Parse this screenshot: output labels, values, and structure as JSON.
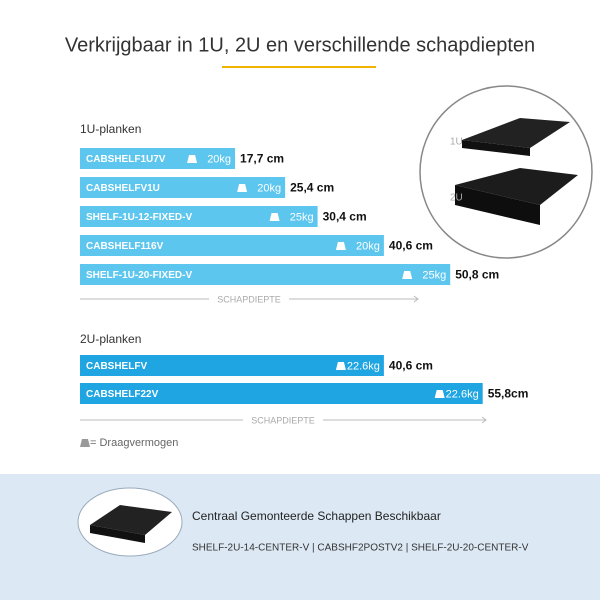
{
  "header": {
    "title": "Verkrijgbaar in 1U, 2U en verschillende schapdiepten"
  },
  "chart_data": [
    {
      "type": "bar",
      "title": "1U-planken",
      "x_label": "SCHAPDIEPTE",
      "color": "#5cc6ef",
      "categories": [
        "CABSHELF1U7V",
        "CABSHELFV1U",
        "SHELF-1U-12-FIXED-V",
        "CABSHELF116V",
        "SHELF-1U-20-FIXED-V"
      ],
      "values": [
        17.7,
        25.4,
        30.4,
        40.6,
        50.8
      ],
      "value_labels": [
        "17,7 cm",
        "25,4 cm",
        "30,4 cm",
        "40,6 cm",
        "50,8 cm"
      ],
      "weights": [
        20,
        20,
        25,
        20,
        25
      ],
      "weight_labels": [
        "20kg",
        "20kg",
        "25kg",
        "20kg",
        "25kg"
      ]
    },
    {
      "type": "bar",
      "title": "2U-planken",
      "x_label": "SCHAPDIEPTE",
      "color": "#1ea5e2",
      "categories": [
        "CABSHELFV",
        "CABSHELF22V"
      ],
      "values": [
        40.6,
        55.8
      ],
      "value_labels": [
        "40,6 cm",
        "55,8cm"
      ],
      "weights": [
        22.6,
        22.6
      ],
      "weight_labels": [
        "22.6kg",
        "22.6kg"
      ]
    }
  ],
  "legend": {
    "label": "= Draagvermogen"
  },
  "image_labels": {
    "u1": "1U",
    "u2": "2U"
  },
  "footer": {
    "heading": "Centraal Gemonteerde Schappen Beschikbaar",
    "models": "SHELF-2U-14-CENTER-V | CABSHF2POSTV2 | SHELF-2U-20-CENTER-V"
  }
}
